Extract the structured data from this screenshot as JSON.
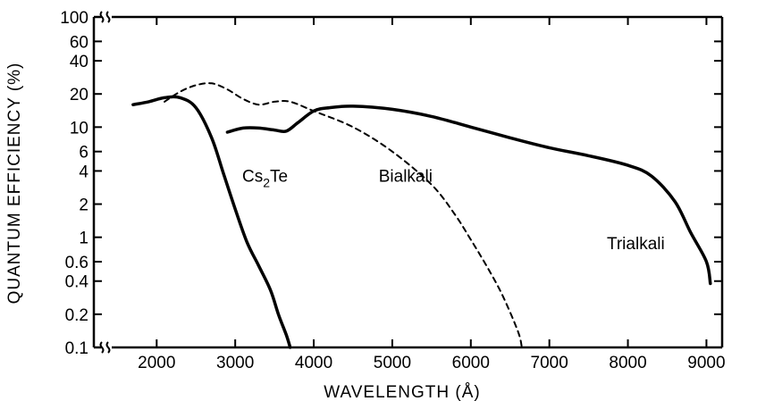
{
  "chart_data": {
    "type": "line",
    "xlabel": "WAVELENGTH (Å)",
    "ylabel": "QUANTUM EFFICIENCY (%)",
    "xlim": [
      1200,
      9200
    ],
    "ylim": [
      0.1,
      100
    ],
    "y_scale": "log",
    "x_ticks": [
      2000,
      3000,
      4000,
      5000,
      6000,
      7000,
      8000,
      9000
    ],
    "x_tick_labels": [
      "2000",
      "3000",
      "4000",
      "5000",
      "6000",
      "7000",
      "8000",
      "9000"
    ],
    "y_ticks": [
      0.1,
      0.2,
      0.4,
      0.6,
      1,
      2,
      4,
      6,
      10,
      20,
      40,
      60,
      100
    ],
    "y_tick_labels": [
      "0.1",
      "0.2",
      "0.4",
      "0.6",
      "1",
      "2",
      "4",
      "6",
      "10",
      "20",
      "40",
      "60",
      "100"
    ],
    "axis_breaks": true,
    "grid": false,
    "legend": "none",
    "series": [
      {
        "name": "Cs₂Te",
        "style": "solid",
        "color": "#000000",
        "x": [
          1700,
          1900,
          2100,
          2300,
          2500,
          2700,
          2850,
          3000,
          3150,
          3300,
          3450,
          3550,
          3650,
          3700
        ],
        "y": [
          16,
          17,
          18.5,
          18.5,
          15,
          8,
          3.8,
          1.8,
          0.9,
          0.55,
          0.33,
          0.2,
          0.13,
          0.1
        ]
      },
      {
        "name": "Bialkali",
        "style": "dashed",
        "color": "#000000",
        "x": [
          2100,
          2300,
          2500,
          2700,
          2900,
          3100,
          3300,
          3500,
          3700,
          4000,
          4500,
          5000,
          5500,
          5800,
          6000,
          6200,
          6400,
          6600,
          6650
        ],
        "y": [
          17,
          21,
          24,
          25,
          22,
          18,
          16,
          17,
          17,
          14,
          10,
          6,
          3,
          1.6,
          0.95,
          0.55,
          0.3,
          0.14,
          0.1
        ]
      },
      {
        "name": "Trialkali",
        "style": "solid",
        "color": "#000000",
        "x": [
          2900,
          3100,
          3300,
          3500,
          3650,
          3800,
          4000,
          4200,
          4500,
          5000,
          5500,
          6000,
          6500,
          7000,
          7500,
          8000,
          8300,
          8600,
          8800,
          9000,
          9050
        ],
        "y": [
          9,
          9.8,
          9.8,
          9.4,
          9.2,
          11,
          14,
          15,
          15.5,
          14.5,
          12.5,
          10,
          8,
          6.5,
          5.5,
          4.5,
          3.6,
          2.1,
          1.1,
          0.6,
          0.38
        ]
      }
    ],
    "annotations": [
      {
        "text": "Cs₂Te",
        "x": 3380,
        "y": 3.2
      },
      {
        "text": "Bialkali",
        "x": 5170,
        "y": 3.2
      },
      {
        "text": "Trialkali",
        "x": 8100,
        "y": 0.78
      }
    ]
  }
}
